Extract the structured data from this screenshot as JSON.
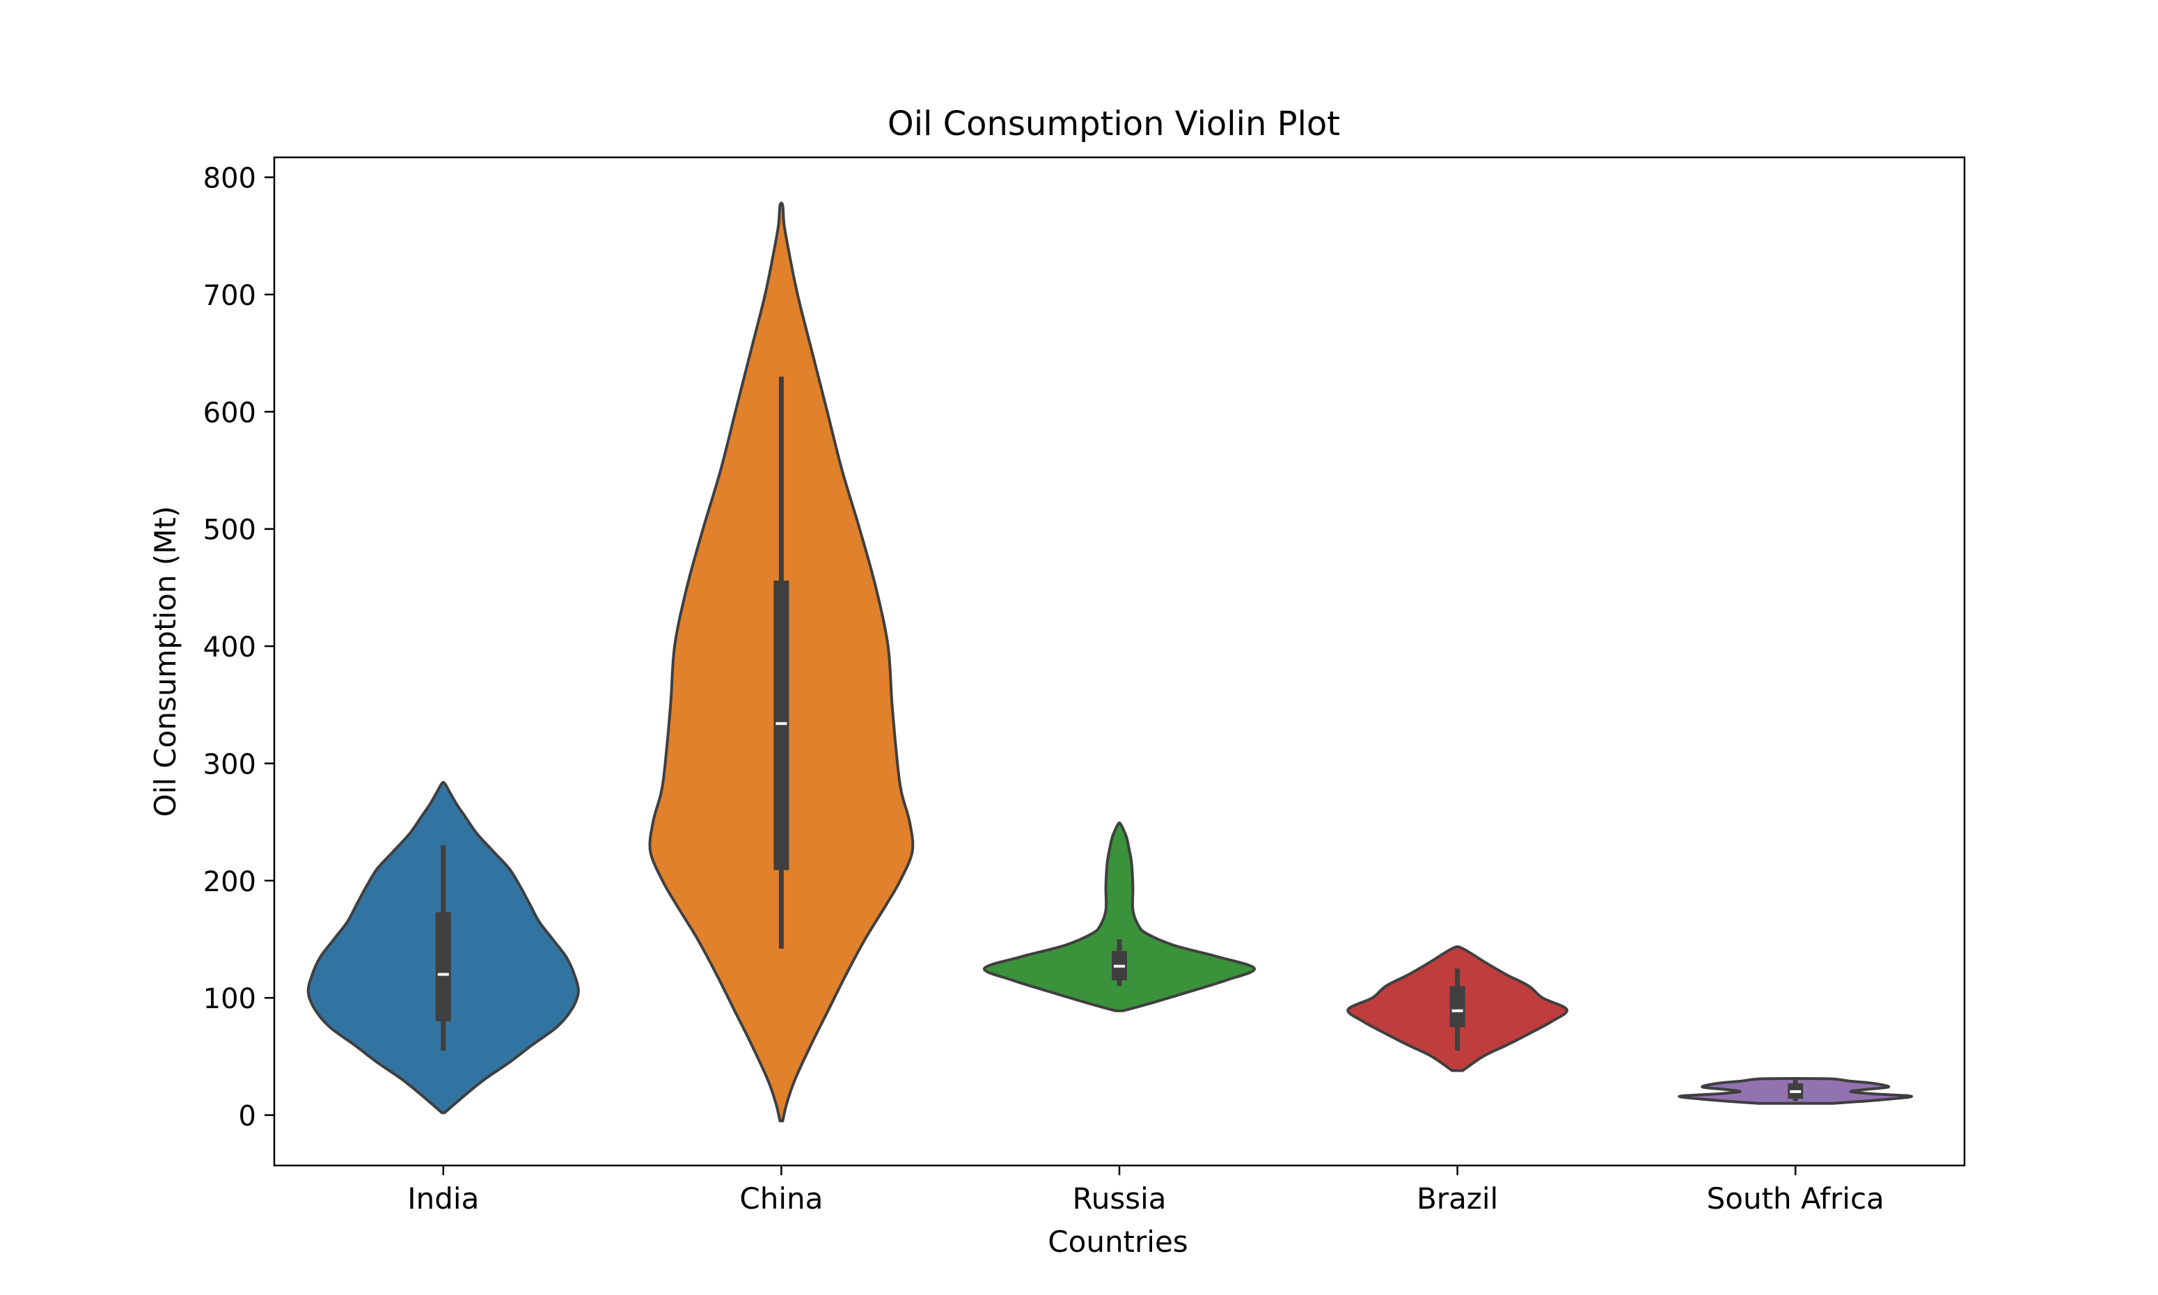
{
  "chart_data": {
    "type": "violin",
    "title": "Oil Consumption Violin Plot",
    "xlabel": "Countries",
    "ylabel": "Oil Consumption (Mt)",
    "ylim": [
      -43,
      817
    ],
    "yticks": [
      0,
      100,
      200,
      300,
      400,
      500,
      600,
      700,
      800
    ],
    "grid": false,
    "categories": [
      "India",
      "China",
      "Russia",
      "Brazil",
      "South Africa"
    ],
    "series": [
      {
        "category": "India",
        "color": "#3274a1",
        "min": 55,
        "q1": 80,
        "median": 120,
        "q3": 173,
        "max": 230,
        "kde_min": 2,
        "kde_max": 283,
        "density": [
          [
            2,
            0.01
          ],
          [
            15,
            0.14
          ],
          [
            30,
            0.3
          ],
          [
            45,
            0.49
          ],
          [
            60,
            0.66
          ],
          [
            75,
            0.84
          ],
          [
            90,
            0.95
          ],
          [
            105,
            1.0
          ],
          [
            120,
            0.97
          ],
          [
            135,
            0.91
          ],
          [
            150,
            0.81
          ],
          [
            165,
            0.71
          ],
          [
            180,
            0.64
          ],
          [
            195,
            0.57
          ],
          [
            210,
            0.49
          ],
          [
            225,
            0.37
          ],
          [
            240,
            0.25
          ],
          [
            255,
            0.16
          ],
          [
            265,
            0.1
          ],
          [
            275,
            0.05
          ],
          [
            283,
            0.01
          ]
        ]
      },
      {
        "category": "China",
        "color": "#e1812c",
        "min": 142,
        "q1": 209,
        "median": 334,
        "q3": 456,
        "max": 630,
        "kde_min": -5,
        "kde_max": 776,
        "density": [
          [
            -5,
            0.01
          ],
          [
            10,
            0.04
          ],
          [
            30,
            0.1
          ],
          [
            60,
            0.22
          ],
          [
            90,
            0.35
          ],
          [
            120,
            0.48
          ],
          [
            150,
            0.62
          ],
          [
            180,
            0.78
          ],
          [
            200,
            0.88
          ],
          [
            225,
            0.97
          ],
          [
            250,
            0.95
          ],
          [
            275,
            0.89
          ],
          [
            300,
            0.86
          ],
          [
            350,
            0.82
          ],
          [
            400,
            0.79
          ],
          [
            450,
            0.7
          ],
          [
            500,
            0.58
          ],
          [
            550,
            0.45
          ],
          [
            600,
            0.34
          ],
          [
            650,
            0.23
          ],
          [
            700,
            0.12
          ],
          [
            740,
            0.05
          ],
          [
            760,
            0.02
          ],
          [
            776,
            0.01
          ]
        ]
      },
      {
        "category": "Russia",
        "color": "#3a923a",
        "min": 110,
        "q1": 115,
        "median": 127,
        "q3": 140,
        "max": 150,
        "kde_min": 89,
        "kde_max": 248,
        "density": [
          [
            89,
            0.03
          ],
          [
            95,
            0.22
          ],
          [
            105,
            0.51
          ],
          [
            115,
            0.79
          ],
          [
            125,
            1.0
          ],
          [
            135,
            0.73
          ],
          [
            145,
            0.4
          ],
          [
            155,
            0.2
          ],
          [
            162,
            0.14
          ],
          [
            175,
            0.1
          ],
          [
            195,
            0.1
          ],
          [
            215,
            0.09
          ],
          [
            228,
            0.07
          ],
          [
            238,
            0.05
          ],
          [
            248,
            0.01
          ]
        ]
      },
      {
        "category": "Brazil",
        "color": "#c03d3e",
        "min": 55,
        "q1": 75,
        "median": 89,
        "q3": 110,
        "max": 125,
        "kde_min": 38,
        "kde_max": 143,
        "density": [
          [
            38,
            0.04
          ],
          [
            50,
            0.19
          ],
          [
            60,
            0.37
          ],
          [
            70,
            0.54
          ],
          [
            80,
            0.7
          ],
          [
            90,
            0.81
          ],
          [
            100,
            0.63
          ],
          [
            110,
            0.53
          ],
          [
            120,
            0.36
          ],
          [
            130,
            0.21
          ],
          [
            138,
            0.1
          ],
          [
            143,
            0.02
          ]
        ]
      },
      {
        "category": "South Africa",
        "color": "#9372b2",
        "min": 12,
        "q1": 14,
        "median": 20,
        "q3": 27,
        "max": 30,
        "kde_min": 10,
        "kde_max": 31,
        "density": [
          [
            10,
            0.28
          ],
          [
            13,
            0.63
          ],
          [
            16,
            0.86
          ],
          [
            18,
            0.59
          ],
          [
            20,
            0.41
          ],
          [
            22,
            0.53
          ],
          [
            24,
            0.69
          ],
          [
            27,
            0.58
          ],
          [
            29,
            0.4
          ],
          [
            31,
            0.24
          ]
        ]
      }
    ]
  }
}
